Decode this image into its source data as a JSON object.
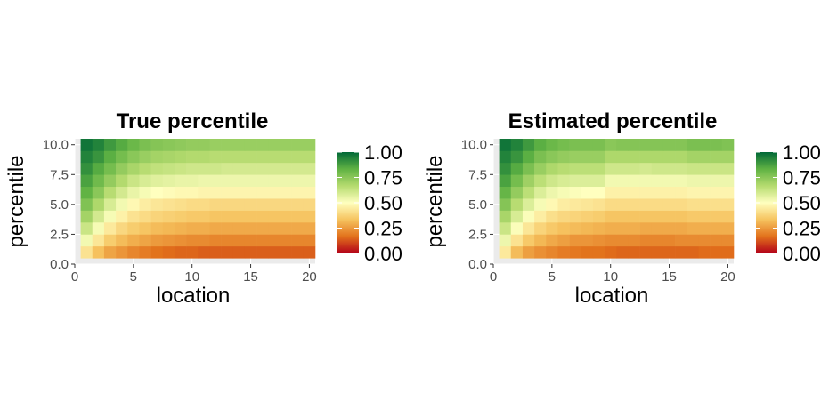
{
  "chart_data": [
    {
      "type": "heatmap",
      "title": "True percentile",
      "xlabel": "location",
      "ylabel": "percentile",
      "x": [
        1,
        2,
        3,
        4,
        5,
        6,
        7,
        8,
        9,
        10,
        11,
        12,
        13,
        14,
        15,
        16,
        17,
        18,
        19,
        20
      ],
      "y": [
        1,
        2,
        3,
        4,
        5,
        6,
        7,
        8,
        9,
        10
      ],
      "xlim": [
        0,
        20.5
      ],
      "ylim": [
        0,
        10.5
      ],
      "x_ticks": [
        "0",
        "5",
        "10",
        "15",
        "20"
      ],
      "y_ticks": [
        "0.0",
        "2.5",
        "5.0",
        "7.5",
        "10.0"
      ],
      "values": [
        [
          0.42,
          0.33,
          0.27,
          0.24,
          0.21,
          0.19,
          0.17,
          0.16,
          0.15,
          0.15,
          0.14,
          0.14,
          0.14,
          0.14,
          0.14,
          0.14,
          0.14,
          0.14,
          0.14,
          0.14
        ],
        [
          0.53,
          0.43,
          0.36,
          0.32,
          0.29,
          0.27,
          0.25,
          0.24,
          0.23,
          0.22,
          0.22,
          0.21,
          0.21,
          0.21,
          0.21,
          0.21,
          0.21,
          0.21,
          0.21,
          0.21
        ],
        [
          0.62,
          0.52,
          0.44,
          0.39,
          0.36,
          0.34,
          0.32,
          0.31,
          0.3,
          0.29,
          0.29,
          0.28,
          0.28,
          0.28,
          0.28,
          0.28,
          0.28,
          0.28,
          0.28,
          0.28
        ],
        [
          0.7,
          0.6,
          0.52,
          0.46,
          0.42,
          0.4,
          0.38,
          0.37,
          0.36,
          0.35,
          0.35,
          0.34,
          0.34,
          0.34,
          0.34,
          0.34,
          0.34,
          0.34,
          0.34,
          0.34
        ],
        [
          0.77,
          0.68,
          0.59,
          0.53,
          0.48,
          0.45,
          0.43,
          0.42,
          0.41,
          0.4,
          0.4,
          0.39,
          0.39,
          0.39,
          0.39,
          0.39,
          0.39,
          0.39,
          0.39,
          0.39
        ],
        [
          0.83,
          0.75,
          0.66,
          0.6,
          0.55,
          0.52,
          0.5,
          0.49,
          0.48,
          0.48,
          0.47,
          0.47,
          0.47,
          0.47,
          0.47,
          0.47,
          0.47,
          0.47,
          0.47,
          0.47
        ],
        [
          0.87,
          0.8,
          0.73,
          0.67,
          0.62,
          0.59,
          0.57,
          0.56,
          0.55,
          0.55,
          0.54,
          0.54,
          0.54,
          0.54,
          0.54,
          0.54,
          0.54,
          0.54,
          0.54,
          0.54
        ],
        [
          0.91,
          0.85,
          0.79,
          0.73,
          0.69,
          0.66,
          0.64,
          0.63,
          0.62,
          0.61,
          0.61,
          0.61,
          0.6,
          0.6,
          0.6,
          0.6,
          0.6,
          0.6,
          0.6,
          0.6
        ],
        [
          0.94,
          0.9,
          0.84,
          0.79,
          0.75,
          0.72,
          0.7,
          0.69,
          0.68,
          0.67,
          0.67,
          0.66,
          0.66,
          0.66,
          0.66,
          0.66,
          0.66,
          0.66,
          0.66,
          0.66
        ],
        [
          0.97,
          0.94,
          0.89,
          0.85,
          0.81,
          0.78,
          0.76,
          0.75,
          0.74,
          0.73,
          0.73,
          0.72,
          0.72,
          0.72,
          0.72,
          0.72,
          0.72,
          0.72,
          0.72,
          0.72
        ]
      ],
      "legend": {
        "title": "",
        "range": [
          0,
          1
        ],
        "ticks": [
          "0.00",
          "0.25",
          "0.50",
          "0.75",
          "1.00"
        ]
      }
    },
    {
      "type": "heatmap",
      "title": "Estimated percentile",
      "xlabel": "location",
      "ylabel": "percentile",
      "x": [
        1,
        2,
        3,
        4,
        5,
        6,
        7,
        8,
        9,
        10,
        11,
        12,
        13,
        14,
        15,
        16,
        17,
        18,
        19,
        20
      ],
      "y": [
        1,
        2,
        3,
        4,
        5,
        6,
        7,
        8,
        9,
        10
      ],
      "xlim": [
        0,
        20.5
      ],
      "ylim": [
        0,
        10.5
      ],
      "x_ticks": [
        "0",
        "5",
        "10",
        "15",
        "20"
      ],
      "y_ticks": [
        "0.0",
        "2.5",
        "5.0",
        "7.5",
        "10.0"
      ],
      "values": [
        [
          0.44,
          0.32,
          0.26,
          0.23,
          0.21,
          0.19,
          0.18,
          0.17,
          0.17,
          0.16,
          0.15,
          0.15,
          0.15,
          0.15,
          0.15,
          0.15,
          0.15,
          0.16,
          0.16,
          0.16
        ],
        [
          0.54,
          0.42,
          0.35,
          0.31,
          0.28,
          0.26,
          0.24,
          0.24,
          0.23,
          0.22,
          0.22,
          0.22,
          0.21,
          0.21,
          0.21,
          0.22,
          0.22,
          0.22,
          0.22,
          0.22
        ],
        [
          0.62,
          0.51,
          0.43,
          0.38,
          0.35,
          0.33,
          0.32,
          0.31,
          0.3,
          0.29,
          0.29,
          0.29,
          0.28,
          0.28,
          0.28,
          0.28,
          0.29,
          0.29,
          0.29,
          0.29
        ],
        [
          0.69,
          0.59,
          0.51,
          0.45,
          0.41,
          0.39,
          0.38,
          0.37,
          0.36,
          0.34,
          0.34,
          0.34,
          0.34,
          0.34,
          0.34,
          0.34,
          0.35,
          0.35,
          0.35,
          0.35
        ],
        [
          0.76,
          0.66,
          0.58,
          0.52,
          0.48,
          0.45,
          0.44,
          0.43,
          0.42,
          0.4,
          0.4,
          0.4,
          0.4,
          0.4,
          0.4,
          0.4,
          0.41,
          0.41,
          0.41,
          0.41
        ],
        [
          0.82,
          0.73,
          0.65,
          0.58,
          0.54,
          0.52,
          0.51,
          0.5,
          0.5,
          0.46,
          0.46,
          0.46,
          0.46,
          0.46,
          0.46,
          0.46,
          0.47,
          0.47,
          0.47,
          0.47
        ],
        [
          0.87,
          0.79,
          0.71,
          0.65,
          0.61,
          0.59,
          0.58,
          0.58,
          0.58,
          0.53,
          0.53,
          0.53,
          0.53,
          0.53,
          0.53,
          0.53,
          0.54,
          0.54,
          0.54,
          0.54
        ],
        [
          0.91,
          0.85,
          0.78,
          0.72,
          0.68,
          0.66,
          0.65,
          0.65,
          0.65,
          0.61,
          0.61,
          0.61,
          0.6,
          0.61,
          0.61,
          0.61,
          0.62,
          0.62,
          0.62,
          0.62
        ],
        [
          0.94,
          0.9,
          0.84,
          0.78,
          0.75,
          0.73,
          0.72,
          0.72,
          0.72,
          0.68,
          0.68,
          0.68,
          0.68,
          0.68,
          0.68,
          0.68,
          0.7,
          0.7,
          0.7,
          0.7
        ],
        [
          0.97,
          0.94,
          0.89,
          0.84,
          0.81,
          0.79,
          0.78,
          0.78,
          0.78,
          0.75,
          0.76,
          0.76,
          0.76,
          0.76,
          0.76,
          0.76,
          0.78,
          0.78,
          0.78,
          0.77
        ]
      ],
      "legend": {
        "title": "",
        "range": [
          0,
          1
        ],
        "ticks": [
          "0.00",
          "0.25",
          "0.50",
          "0.75",
          "1.00"
        ]
      }
    }
  ],
  "colors": {
    "panel_background": "#ebebeb",
    "gridline": "#ffffff",
    "scale": [
      "#b2001a",
      "#e2711b",
      "#f6c35f",
      "#ffffbf",
      "#b5db6f",
      "#5fb243",
      "#006837"
    ]
  }
}
